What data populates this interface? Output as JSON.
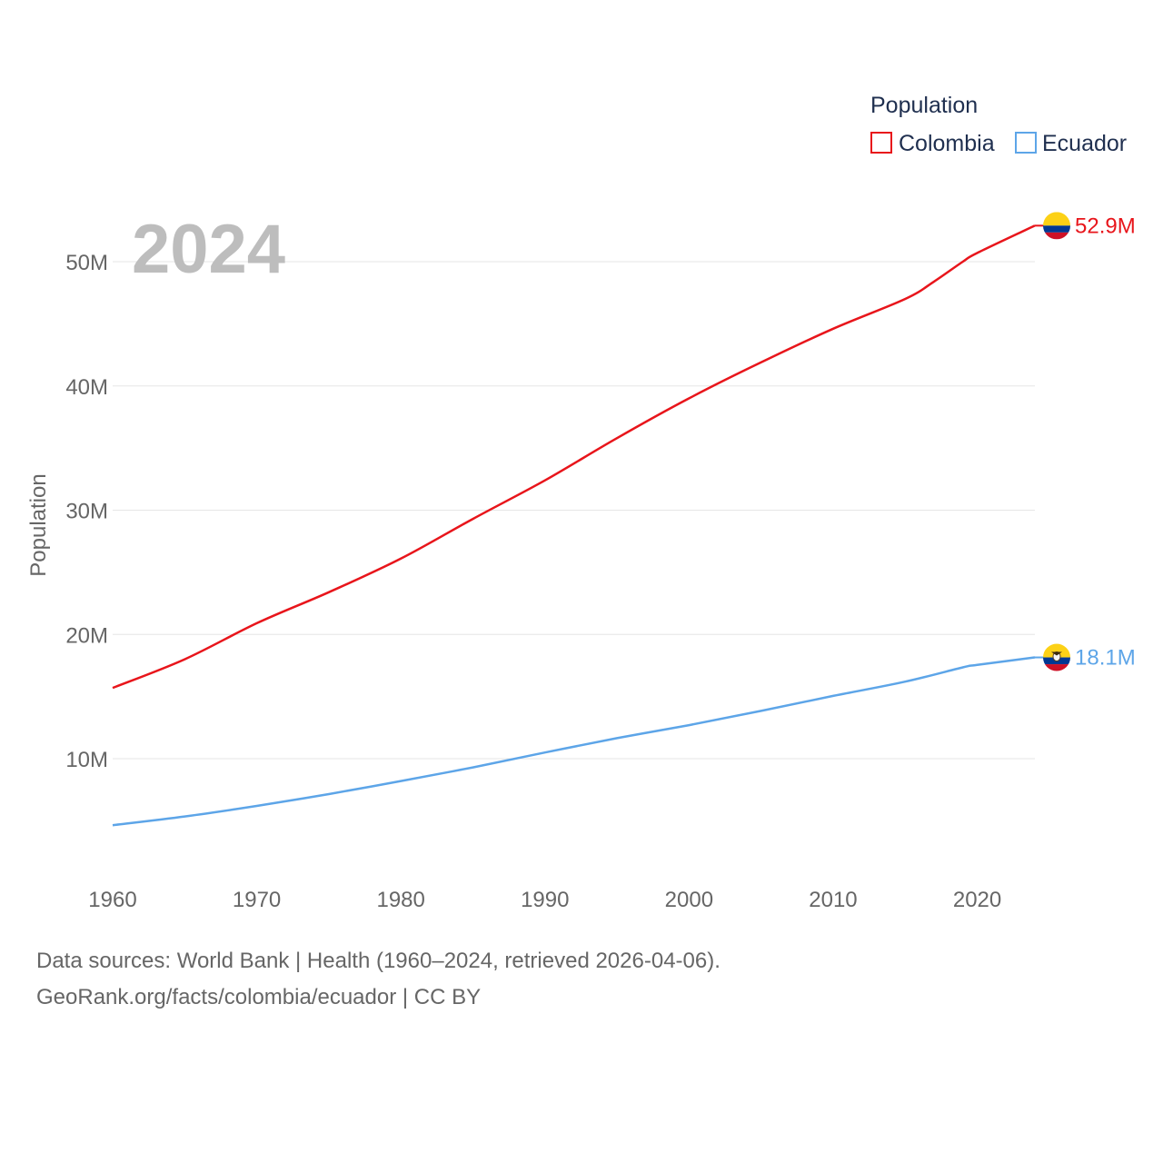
{
  "chart_data": {
    "type": "line",
    "current_year_label": "2024",
    "legend_title": "Population",
    "ylabel": "Population",
    "xlabel": "",
    "xlim": [
      1960,
      2024
    ],
    "ylim": [
      0,
      55000000
    ],
    "x_ticks": [
      {
        "value": 1960,
        "label": "1960"
      },
      {
        "value": 1970,
        "label": "1970"
      },
      {
        "value": 1980,
        "label": "1980"
      },
      {
        "value": 1990,
        "label": "1990"
      },
      {
        "value": 2000,
        "label": "2000"
      },
      {
        "value": 2010,
        "label": "2010"
      },
      {
        "value": 2020,
        "label": "2020"
      }
    ],
    "y_ticks": [
      {
        "value": 10000000,
        "label": "10M"
      },
      {
        "value": 20000000,
        "label": "20M"
      },
      {
        "value": 30000000,
        "label": "30M"
      },
      {
        "value": 40000000,
        "label": "40M"
      },
      {
        "value": 50000000,
        "label": "50M"
      }
    ],
    "series": [
      {
        "name": "Colombia",
        "color": "#e8151b",
        "end_label": "52.9M",
        "flag": "colombia-flag",
        "x": [
          1960,
          1965,
          1970,
          1975,
          1980,
          1985,
          1990,
          1995,
          2000,
          2005,
          2010,
          2015,
          2017,
          2019,
          2020,
          2024
        ],
        "values": [
          15700000,
          18000000,
          20900000,
          23400000,
          26100000,
          29300000,
          32400000,
          35800000,
          39000000,
          41900000,
          44600000,
          47000000,
          48400000,
          50000000,
          50700000,
          52900000
        ]
      },
      {
        "name": "Ecuador",
        "color": "#5da5e8",
        "end_label": "18.1M",
        "flag": "ecuador-flag",
        "x": [
          1960,
          1965,
          1970,
          1975,
          1980,
          1985,
          1990,
          1995,
          2000,
          2005,
          2010,
          2015,
          2019,
          2020,
          2024
        ],
        "values": [
          4650000,
          5350000,
          6200000,
          7150000,
          8200000,
          9300000,
          10500000,
          11650000,
          12700000,
          13850000,
          15050000,
          16200000,
          17350000,
          17550000,
          18150000
        ]
      }
    ]
  },
  "footer": {
    "line1": "Data sources: World Bank | Health (1960–2024, retrieved 2026-04-06).",
    "line2": "GeoRank.org/facts/colombia/ecuador | CC BY"
  }
}
